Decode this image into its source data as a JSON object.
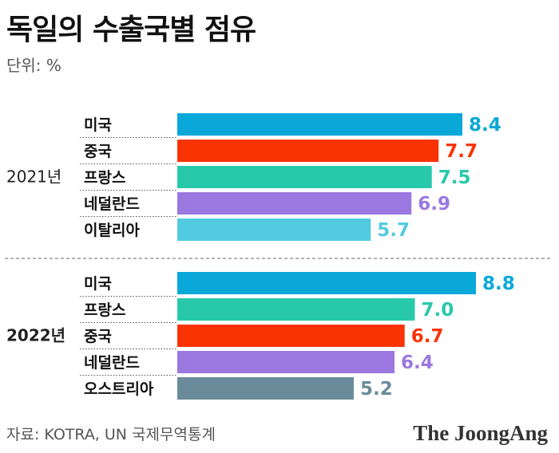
{
  "title": "독일의 수출국별 점유",
  "unit": "단위: %",
  "source": "자료: KOTRA, UN 국제무역통계",
  "logo": "The JoongAng",
  "colors": {
    "미국": "#0aa8d8",
    "중국": "#fa3305",
    "프랑스": "#28c9ab",
    "네덜란드": "#9a78e0",
    "이탈리아": "#52cbe0",
    "오스트리아": "#6a8c9a"
  },
  "chart_data": {
    "type": "bar",
    "orientation": "horizontal",
    "groups": [
      {
        "label": "2021년",
        "bars": [
          {
            "label": "미국",
            "value": 8.4
          },
          {
            "label": "중국",
            "value": 7.7
          },
          {
            "label": "프랑스",
            "value": 7.5
          },
          {
            "label": "네덜란드",
            "value": 6.9
          },
          {
            "label": "이탈리아",
            "value": 5.7
          }
        ]
      },
      {
        "label": "2022년",
        "bars": [
          {
            "label": "미국",
            "value": 8.8
          },
          {
            "label": "프랑스",
            "value": 7.0
          },
          {
            "label": "중국",
            "value": 6.7
          },
          {
            "label": "네덜란드",
            "value": 6.4
          },
          {
            "label": "오스트리아",
            "value": 5.2
          }
        ]
      }
    ]
  }
}
